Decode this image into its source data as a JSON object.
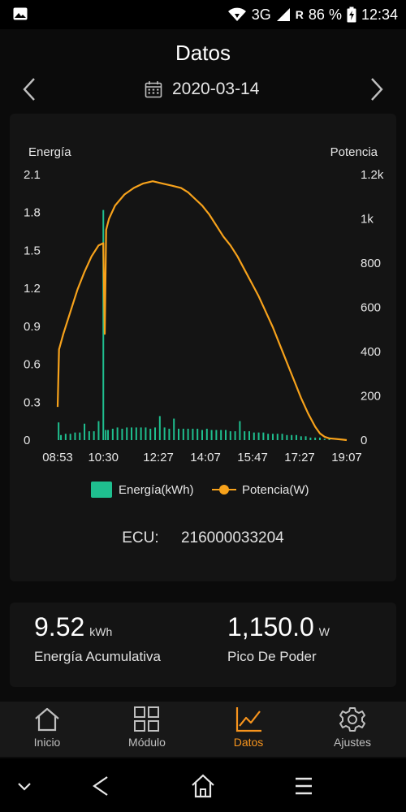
{
  "status_bar": {
    "network": "3G",
    "roaming": "R",
    "battery": "86 %",
    "time": "12:34"
  },
  "header": {
    "title": "Datos",
    "date": "2020-03-14"
  },
  "chart_data": {
    "type": "bar+line",
    "left_axis_label": "Energía",
    "right_axis_label": "Potencia",
    "left_ticks": [
      "0",
      "0.3",
      "0.6",
      "0.9",
      "1.2",
      "1.5",
      "1.8",
      "2.1"
    ],
    "left_ylim": [
      0,
      2.1
    ],
    "right_ticks": [
      "0",
      "200",
      "400",
      "600",
      "800",
      "1k",
      "1.2k"
    ],
    "right_ylim": [
      0,
      1200
    ],
    "x_tick_labels": [
      "08:53",
      "10:30",
      "12:27",
      "14:07",
      "15:47",
      "17:27",
      "19:07"
    ],
    "x_range_minutes": [
      533,
      1147
    ],
    "legend": [
      {
        "name": "Energía(kWh)",
        "color": "#1fbf8f"
      },
      {
        "name": "Potencia(W)",
        "color": "#f7a21b"
      }
    ],
    "power_series": {
      "name": "Potencia(W)",
      "color": "#f7a21b",
      "x": [
        "08:53",
        "08:56",
        "09:05",
        "09:20",
        "09:35",
        "09:50",
        "10:05",
        "10:20",
        "10:30",
        "10:33",
        "10:36",
        "10:42",
        "10:55",
        "11:15",
        "11:35",
        "11:55",
        "12:15",
        "12:35",
        "12:55",
        "13:15",
        "13:30",
        "13:45",
        "14:00",
        "14:15",
        "14:30",
        "14:45",
        "15:00",
        "15:15",
        "15:30",
        "15:45",
        "16:00",
        "16:15",
        "16:30",
        "16:45",
        "17:00",
        "17:15",
        "17:30",
        "17:45",
        "18:00",
        "18:10",
        "18:20",
        "18:30",
        "18:45",
        "19:00",
        "19:07"
      ],
      "y": [
        150,
        410,
        480,
        580,
        680,
        760,
        830,
        880,
        890,
        480,
        950,
        1000,
        1060,
        1110,
        1140,
        1160,
        1170,
        1160,
        1150,
        1140,
        1120,
        1090,
        1060,
        1020,
        970,
        920,
        880,
        830,
        770,
        710,
        650,
        580,
        510,
        430,
        350,
        270,
        190,
        120,
        60,
        30,
        15,
        8,
        5,
        2,
        0
      ]
    },
    "energy_series": {
      "name": "Energía(kWh)",
      "color": "#1fbf8f",
      "x": [
        "08:55",
        "09:00",
        "09:10",
        "09:20",
        "09:30",
        "09:40",
        "09:50",
        "10:00",
        "10:10",
        "10:20",
        "10:30",
        "10:35",
        "10:40",
        "10:50",
        "11:00",
        "11:10",
        "11:20",
        "11:30",
        "11:40",
        "11:50",
        "12:00",
        "12:10",
        "12:20",
        "12:30",
        "12:40",
        "12:50",
        "13:00",
        "13:10",
        "13:20",
        "13:30",
        "13:40",
        "13:50",
        "14:00",
        "14:10",
        "14:20",
        "14:30",
        "14:40",
        "14:50",
        "15:00",
        "15:10",
        "15:20",
        "15:30",
        "15:40",
        "15:50",
        "16:00",
        "16:10",
        "16:20",
        "16:30",
        "16:40",
        "16:50",
        "17:00",
        "17:10",
        "17:20",
        "17:30",
        "17:40",
        "17:50",
        "18:00",
        "18:10",
        "18:20",
        "18:30"
      ],
      "y": [
        0.14,
        0.04,
        0.05,
        0.05,
        0.06,
        0.06,
        0.13,
        0.07,
        0.07,
        0.15,
        1.82,
        0.08,
        0.08,
        0.09,
        0.1,
        0.09,
        0.1,
        0.1,
        0.1,
        0.1,
        0.1,
        0.09,
        0.1,
        0.19,
        0.1,
        0.09,
        0.17,
        0.09,
        0.09,
        0.09,
        0.09,
        0.09,
        0.08,
        0.09,
        0.08,
        0.08,
        0.08,
        0.08,
        0.07,
        0.07,
        0.15,
        0.07,
        0.07,
        0.06,
        0.06,
        0.06,
        0.05,
        0.05,
        0.05,
        0.05,
        0.04,
        0.04,
        0.04,
        0.03,
        0.03,
        0.02,
        0.02,
        0.02,
        0.01,
        0.01
      ]
    }
  },
  "ecu": {
    "label": "ECU:",
    "value": "216000033204"
  },
  "stats": {
    "energy": {
      "value": "9.52",
      "unit": "kWh",
      "caption": "Energía Acumulativa"
    },
    "peak": {
      "value": "1,150.0",
      "unit": "W",
      "caption": "Pico De Poder"
    }
  },
  "bottom_nav": {
    "items": [
      {
        "label": "Inicio",
        "icon": "home-icon"
      },
      {
        "label": "Módulo",
        "icon": "grid-icon"
      },
      {
        "label": "Datos",
        "icon": "chart-icon",
        "active": true
      },
      {
        "label": "Ajustes",
        "icon": "gear-icon"
      }
    ],
    "active_color": "#f7941d"
  }
}
